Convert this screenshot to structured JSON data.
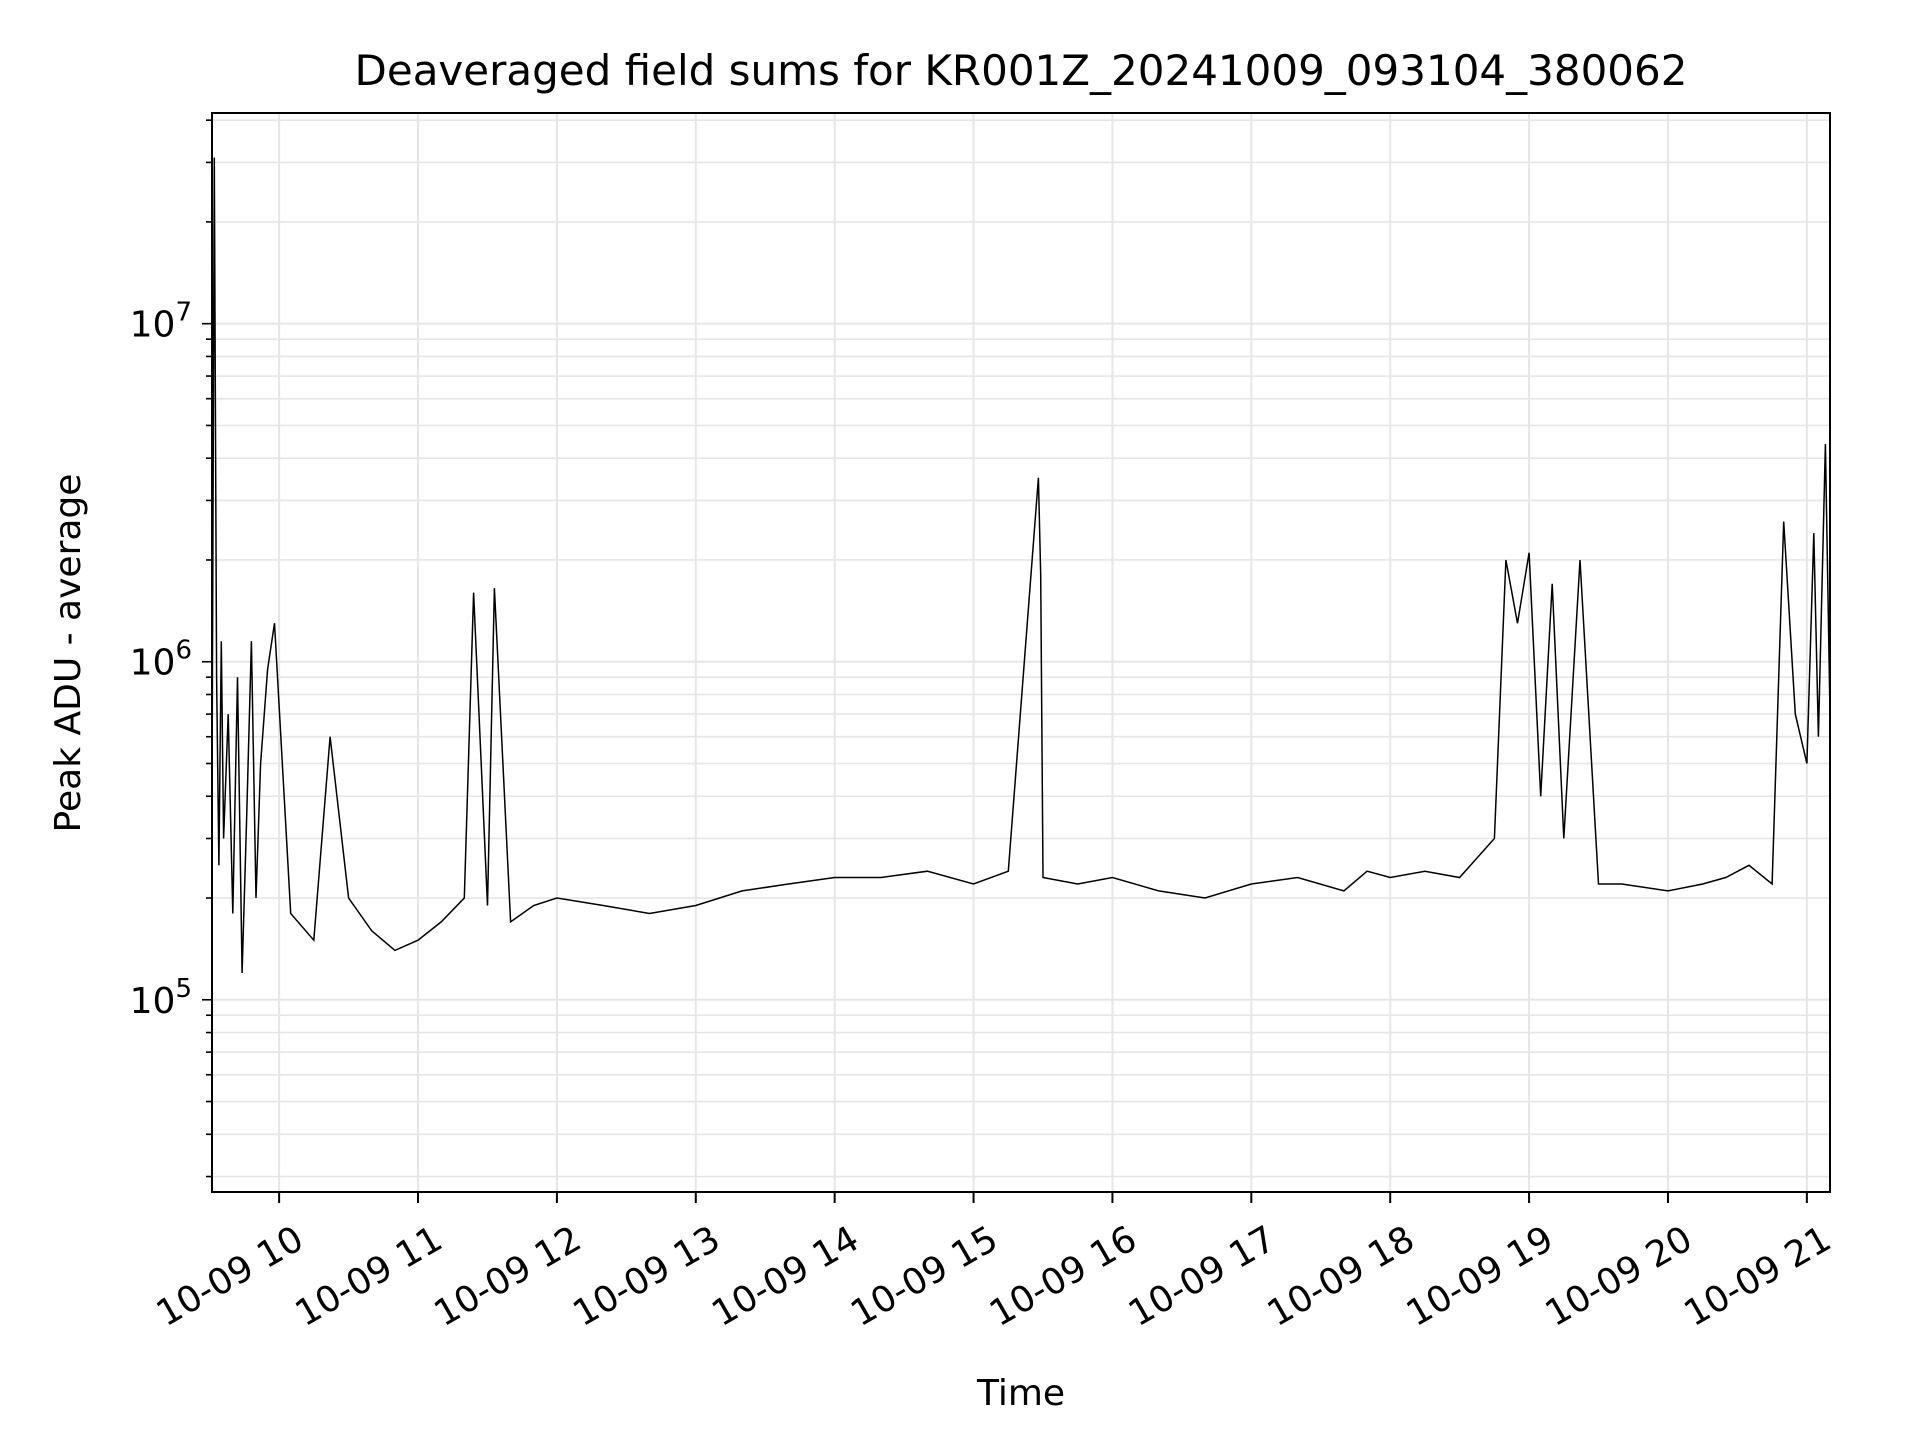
{
  "chart_data": {
    "type": "line",
    "title": "Deaveraged field sums for KR001Z_20241009_093104_380062",
    "xlabel": "Time",
    "ylabel": "Peak ADU - average",
    "yscale": "log",
    "ylim": [
      27000,
      42000000
    ],
    "xlim": [
      "2024-10-09 09:31",
      "2024-10-09 21:10"
    ],
    "grid": true,
    "line_color": "#000000",
    "grid_color": "#e6e6e6",
    "x_ticks": [
      {
        "value": "2024-10-09 10:00",
        "label": "10-09 10"
      },
      {
        "value": "2024-10-09 11:00",
        "label": "10-09 11"
      },
      {
        "value": "2024-10-09 12:00",
        "label": "10-09 12"
      },
      {
        "value": "2024-10-09 13:00",
        "label": "10-09 13"
      },
      {
        "value": "2024-10-09 14:00",
        "label": "10-09 14"
      },
      {
        "value": "2024-10-09 15:00",
        "label": "10-09 15"
      },
      {
        "value": "2024-10-09 16:00",
        "label": "10-09 16"
      },
      {
        "value": "2024-10-09 17:00",
        "label": "10-09 17"
      },
      {
        "value": "2024-10-09 18:00",
        "label": "10-09 18"
      },
      {
        "value": "2024-10-09 19:00",
        "label": "10-09 19"
      },
      {
        "value": "2024-10-09 20:00",
        "label": "10-09 20"
      },
      {
        "value": "2024-10-09 21:00",
        "label": "10-09 21"
      }
    ],
    "y_ticks": [
      {
        "value": 100000,
        "mantissa": "10",
        "exponent": "5"
      },
      {
        "value": 1000000,
        "mantissa": "10",
        "exponent": "6"
      },
      {
        "value": 10000000,
        "mantissa": "10",
        "exponent": "7"
      }
    ],
    "series": [
      {
        "x": [
          "2024-10-09 09:31",
          "2024-10-09 09:32",
          "2024-10-09 09:33",
          "2024-10-09 09:34",
          "2024-10-09 09:35",
          "2024-10-09 09:36",
          "2024-10-09 09:38",
          "2024-10-09 09:40",
          "2024-10-09 09:42",
          "2024-10-09 09:44",
          "2024-10-09 09:46",
          "2024-10-09 09:48",
          "2024-10-09 09:50",
          "2024-10-09 09:52",
          "2024-10-09 09:55",
          "2024-10-09 09:58",
          "2024-10-09 10:05",
          "2024-10-09 10:15",
          "2024-10-09 10:22",
          "2024-10-09 10:30",
          "2024-10-09 10:40",
          "2024-10-09 10:50",
          "2024-10-09 11:00",
          "2024-10-09 11:10",
          "2024-10-09 11:20",
          "2024-10-09 11:24",
          "2024-10-09 11:30",
          "2024-10-09 11:33",
          "2024-10-09 11:40",
          "2024-10-09 11:50",
          "2024-10-09 12:00",
          "2024-10-09 12:20",
          "2024-10-09 12:40",
          "2024-10-09 13:00",
          "2024-10-09 13:20",
          "2024-10-09 13:40",
          "2024-10-09 14:00",
          "2024-10-09 14:20",
          "2024-10-09 14:40",
          "2024-10-09 15:00",
          "2024-10-09 15:15",
          "2024-10-09 15:28",
          "2024-10-09 15:29",
          "2024-10-09 15:30",
          "2024-10-09 15:45",
          "2024-10-09 16:00",
          "2024-10-09 16:20",
          "2024-10-09 16:40",
          "2024-10-09 17:00",
          "2024-10-09 17:20",
          "2024-10-09 17:40",
          "2024-10-09 17:50",
          "2024-10-09 18:00",
          "2024-10-09 18:15",
          "2024-10-09 18:30",
          "2024-10-09 18:45",
          "2024-10-09 18:50",
          "2024-10-09 18:55",
          "2024-10-09 19:00",
          "2024-10-09 19:05",
          "2024-10-09 19:10",
          "2024-10-09 19:15",
          "2024-10-09 19:22",
          "2024-10-09 19:30",
          "2024-10-09 19:40",
          "2024-10-09 20:00",
          "2024-10-09 20:15",
          "2024-10-09 20:25",
          "2024-10-09 20:35",
          "2024-10-09 20:45",
          "2024-10-09 20:50",
          "2024-10-09 20:55",
          "2024-10-09 21:00",
          "2024-10-09 21:03",
          "2024-10-09 21:05",
          "2024-10-09 21:08",
          "2024-10-09 21:10"
        ],
        "y": [
          400000,
          31000000,
          900000,
          250000,
          1150000,
          300000,
          700000,
          180000,
          900000,
          120000,
          350000,
          1150000,
          200000,
          500000,
          950000,
          1300000,
          180000,
          150000,
          600000,
          200000,
          160000,
          140000,
          150000,
          170000,
          200000,
          1600000,
          190000,
          1650000,
          170000,
          190000,
          200000,
          190000,
          180000,
          190000,
          210000,
          220000,
          230000,
          230000,
          240000,
          220000,
          240000,
          3500000,
          1800000,
          230000,
          220000,
          230000,
          210000,
          200000,
          220000,
          230000,
          210000,
          240000,
          230000,
          240000,
          230000,
          300000,
          2000000,
          1300000,
          2100000,
          400000,
          1700000,
          300000,
          2000000,
          220000,
          220000,
          210000,
          220000,
          230000,
          250000,
          220000,
          2600000,
          700000,
          500000,
          2400000,
          600000,
          4400000,
          700000
        ]
      }
    ]
  }
}
